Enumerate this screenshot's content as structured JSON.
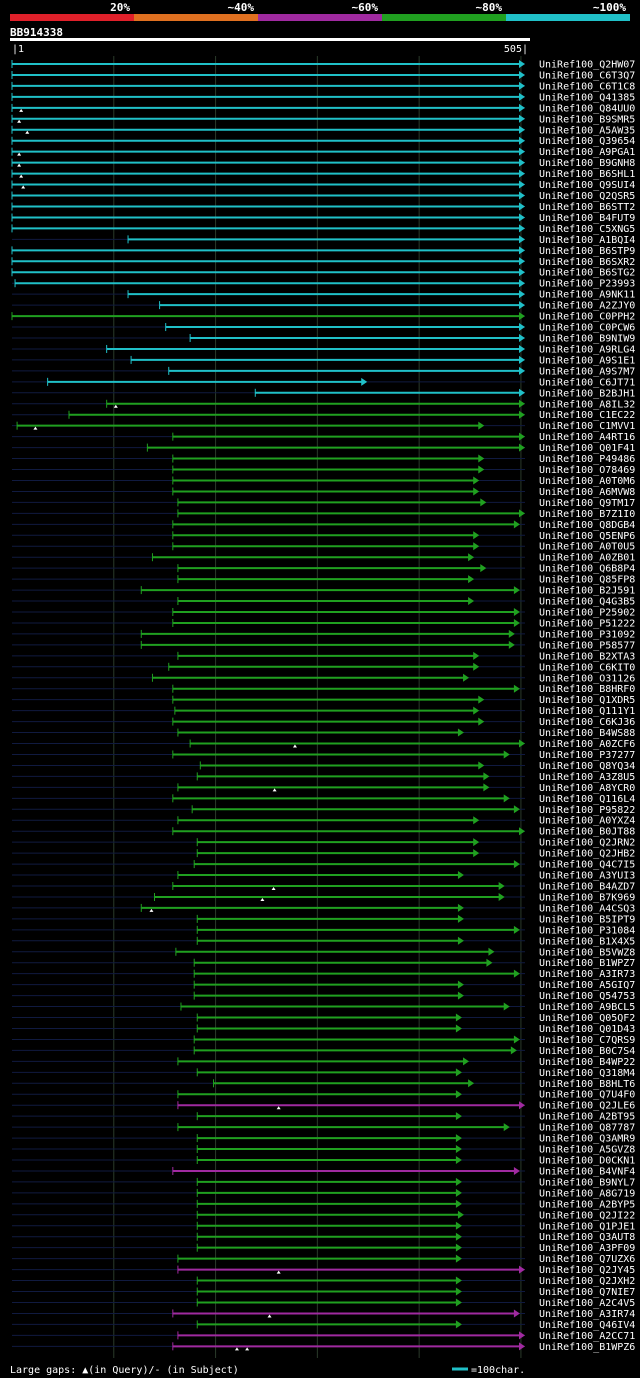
{
  "chart_data": {
    "type": "alignment-overview",
    "query": {
      "id": "BB914338",
      "start": 1,
      "end": 505
    },
    "legend": [
      {
        "label": "20%",
        "color": "#e0202a"
      },
      {
        "label": "~40%",
        "color": "#e07020"
      },
      {
        "label": "~60%",
        "color": "#a02aa0"
      },
      {
        "label": "~80%",
        "color": "#20a020"
      },
      {
        "label": "~100%",
        "color": "#20c0c8"
      }
    ],
    "scale_note": "=100char.",
    "footer": "Large gaps: ▲(in Query)/- (in Subject)",
    "hits": [
      {
        "id": "UniRef100_Q2HW07",
        "s": 1,
        "e": 505,
        "c": "t"
      },
      {
        "id": "UniRef100_C6T3Q7",
        "s": 1,
        "e": 505,
        "c": "t"
      },
      {
        "id": "UniRef100_C6T1C8",
        "s": 1,
        "e": 505,
        "c": "t"
      },
      {
        "id": "UniRef100_Q41385",
        "s": 1,
        "e": 505,
        "c": "t"
      },
      {
        "id": "UniRef100_Q84UU0",
        "s": 1,
        "e": 505,
        "c": "t",
        "q": [
          10
        ]
      },
      {
        "id": "UniRef100_B9SMR5",
        "s": 1,
        "e": 505,
        "c": "t",
        "q": [
          8
        ]
      },
      {
        "id": "UniRef100_A5AW35",
        "s": 1,
        "e": 505,
        "c": "t",
        "q": [
          16
        ]
      },
      {
        "id": "UniRef100_Q39654",
        "s": 1,
        "e": 505,
        "c": "t"
      },
      {
        "id": "UniRef100_A9PGA1",
        "s": 1,
        "e": 505,
        "c": "t",
        "q": [
          8
        ]
      },
      {
        "id": "UniRef100_B9GNH8",
        "s": 1,
        "e": 505,
        "c": "t",
        "q": [
          8
        ]
      },
      {
        "id": "UniRef100_B6SHL1",
        "s": 1,
        "e": 505,
        "c": "t",
        "q": [
          10
        ]
      },
      {
        "id": "UniRef100_Q9SUI4",
        "s": 1,
        "e": 505,
        "c": "t",
        "q": [
          12
        ]
      },
      {
        "id": "UniRef100_Q2QSR5",
        "s": 1,
        "e": 505,
        "c": "t"
      },
      {
        "id": "UniRef100_B6STT2",
        "s": 1,
        "e": 505,
        "c": "t"
      },
      {
        "id": "UniRef100_B4FUT9",
        "s": 1,
        "e": 505,
        "c": "t"
      },
      {
        "id": "UniRef100_C5XNG5",
        "s": 1,
        "e": 505,
        "c": "t"
      },
      {
        "id": "UniRef100_A1BQI4",
        "s": 115,
        "e": 505,
        "c": "t"
      },
      {
        "id": "UniRef100_B6STP9",
        "s": 1,
        "e": 505,
        "c": "t"
      },
      {
        "id": "UniRef100_B6SXR2",
        "s": 1,
        "e": 505,
        "c": "t"
      },
      {
        "id": "UniRef100_B6STG2",
        "s": 1,
        "e": 505,
        "c": "t"
      },
      {
        "id": "UniRef100_P23993",
        "s": 4,
        "e": 505,
        "c": "t"
      },
      {
        "id": "UniRef100_A9NK11",
        "s": 115,
        "e": 505,
        "c": "t"
      },
      {
        "id": "UniRef100_A2ZJY0",
        "s": 146,
        "e": 505,
        "c": "t"
      },
      {
        "id": "UniRef100_C0PPH2",
        "s": 1,
        "e": 505,
        "c": "g"
      },
      {
        "id": "UniRef100_C0PCW6",
        "s": 152,
        "e": 505,
        "c": "t"
      },
      {
        "id": "UniRef100_B9NIW9",
        "s": 176,
        "e": 505,
        "c": "t"
      },
      {
        "id": "UniRef100_A9RLG4",
        "s": 94,
        "e": 505,
        "c": "t"
      },
      {
        "id": "UniRef100_A9S1E1",
        "s": 118,
        "e": 505,
        "c": "t"
      },
      {
        "id": "UniRef100_A9S7M7",
        "s": 155,
        "e": 505,
        "c": "t"
      },
      {
        "id": "UniRef100_C6JT71",
        "s": 36,
        "e": 350,
        "c": "t"
      },
      {
        "id": "UniRef100_B2BJH1",
        "s": 240,
        "e": 505,
        "c": "t"
      },
      {
        "id": "UniRef100_A8IL32",
        "s": 94,
        "e": 505,
        "c": "g",
        "q": [
          103
        ]
      },
      {
        "id": "UniRef100_C1EC22",
        "s": 57,
        "e": 505,
        "c": "g"
      },
      {
        "id": "UniRef100_C1MVV1",
        "s": 6,
        "e": 465,
        "c": "g",
        "q": [
          24
        ]
      },
      {
        "id": "UniRef100_A4RT16",
        "s": 159,
        "e": 505,
        "c": "g"
      },
      {
        "id": "UniRef100_Q01F41",
        "s": 134,
        "e": 505,
        "c": "g"
      },
      {
        "id": "UniRef100_P49486",
        "s": 159,
        "e": 465,
        "c": "g"
      },
      {
        "id": "UniRef100_O78469",
        "s": 159,
        "e": 465,
        "c": "g"
      },
      {
        "id": "UniRef100_A0T0M6",
        "s": 159,
        "e": 460,
        "c": "g"
      },
      {
        "id": "UniRef100_A6MVW8",
        "s": 159,
        "e": 460,
        "c": "g"
      },
      {
        "id": "UniRef100_Q9TM17",
        "s": 164,
        "e": 467,
        "c": "g"
      },
      {
        "id": "UniRef100_B7Z1I0",
        "s": 164,
        "e": 505,
        "c": "g"
      },
      {
        "id": "UniRef100_Q8DGB4",
        "s": 159,
        "e": 500,
        "c": "g"
      },
      {
        "id": "UniRef100_Q5ENP6",
        "s": 159,
        "e": 460,
        "c": "g"
      },
      {
        "id": "UniRef100_A0T0U5",
        "s": 159,
        "e": 460,
        "c": "g"
      },
      {
        "id": "UniRef100_A0ZB01",
        "s": 139,
        "e": 455,
        "c": "g"
      },
      {
        "id": "UniRef100_Q6B8P4",
        "s": 164,
        "e": 467,
        "c": "g"
      },
      {
        "id": "UniRef100_Q85FP8",
        "s": 164,
        "e": 455,
        "c": "g"
      },
      {
        "id": "UniRef100_B2J591",
        "s": 128,
        "e": 500,
        "c": "g"
      },
      {
        "id": "UniRef100_Q4G3B5",
        "s": 164,
        "e": 455,
        "c": "g"
      },
      {
        "id": "UniRef100_P25902",
        "s": 159,
        "e": 500,
        "c": "g"
      },
      {
        "id": "UniRef100_P51222",
        "s": 159,
        "e": 500,
        "c": "g"
      },
      {
        "id": "UniRef100_P31092",
        "s": 128,
        "e": 495,
        "c": "g"
      },
      {
        "id": "UniRef100_P58577",
        "s": 128,
        "e": 495,
        "c": "g"
      },
      {
        "id": "UniRef100_B2XTA3",
        "s": 164,
        "e": 460,
        "c": "g"
      },
      {
        "id": "UniRef100_C6KIT0",
        "s": 155,
        "e": 460,
        "c": "g"
      },
      {
        "id": "UniRef100_O31126",
        "s": 139,
        "e": 450,
        "c": "g"
      },
      {
        "id": "UniRef100_B8HRF0",
        "s": 159,
        "e": 500,
        "c": "g"
      },
      {
        "id": "UniRef100_Q1XDR5",
        "s": 159,
        "e": 465,
        "c": "g"
      },
      {
        "id": "UniRef100_Q111Y1",
        "s": 161,
        "e": 460,
        "c": "g"
      },
      {
        "id": "UniRef100_C6KJ36",
        "s": 159,
        "e": 465,
        "c": "g"
      },
      {
        "id": "UniRef100_B4WS88",
        "s": 164,
        "e": 445,
        "c": "g"
      },
      {
        "id": "UniRef100_A0ZCF6",
        "s": 176,
        "e": 505,
        "c": "g",
        "q": [
          279
        ]
      },
      {
        "id": "UniRef100_P37277",
        "s": 159,
        "e": 490,
        "c": "g"
      },
      {
        "id": "UniRef100_Q8YQ34",
        "s": 186,
        "e": 465,
        "c": "g"
      },
      {
        "id": "UniRef100_A3Z8U5",
        "s": 183,
        "e": 470,
        "c": "g"
      },
      {
        "id": "UniRef100_A8YCR0",
        "s": 164,
        "e": 470,
        "c": "g",
        "q": [
          259
        ]
      },
      {
        "id": "UniRef100_Q116L4",
        "s": 159,
        "e": 490,
        "c": "g"
      },
      {
        "id": "UniRef100_P95822",
        "s": 178,
        "e": 500,
        "c": "g"
      },
      {
        "id": "UniRef100_A0YXZ4",
        "s": 164,
        "e": 460,
        "c": "g"
      },
      {
        "id": "UniRef100_B0JT88",
        "s": 159,
        "e": 505,
        "c": "g"
      },
      {
        "id": "UniRef100_Q2JRN2",
        "s": 183,
        "e": 460,
        "c": "g"
      },
      {
        "id": "UniRef100_Q2JHB2",
        "s": 183,
        "e": 460,
        "c": "g"
      },
      {
        "id": "UniRef100_Q4C7I5",
        "s": 180,
        "e": 500,
        "c": "g"
      },
      {
        "id": "UniRef100_A3YUI3",
        "s": 164,
        "e": 445,
        "c": "g"
      },
      {
        "id": "UniRef100_B4AZD7",
        "s": 159,
        "e": 485,
        "c": "g",
        "q": [
          258
        ]
      },
      {
        "id": "UniRef100_B7K969",
        "s": 141,
        "e": 485,
        "c": "g",
        "q": [
          247
        ]
      },
      {
        "id": "UniRef100_A4CSQ3",
        "s": 128,
        "e": 445,
        "c": "g",
        "q": [
          138
        ]
      },
      {
        "id": "UniRef100_B5IPT9",
        "s": 183,
        "e": 445,
        "c": "g"
      },
      {
        "id": "UniRef100_P31084",
        "s": 183,
        "e": 500,
        "c": "g"
      },
      {
        "id": "UniRef100_B1X4X5",
        "s": 183,
        "e": 445,
        "c": "g"
      },
      {
        "id": "UniRef100_B5VWZ8",
        "s": 162,
        "e": 475,
        "c": "g"
      },
      {
        "id": "UniRef100_B1WPZ7",
        "s": 180,
        "e": 473,
        "c": "g"
      },
      {
        "id": "UniRef100_A3IR73",
        "s": 180,
        "e": 500,
        "c": "g"
      },
      {
        "id": "UniRef100_A5GIQ7",
        "s": 180,
        "e": 445,
        "c": "g"
      },
      {
        "id": "UniRef100_Q54753",
        "s": 180,
        "e": 445,
        "c": "g"
      },
      {
        "id": "UniRef100_A9BCL5",
        "s": 167,
        "e": 490,
        "c": "g"
      },
      {
        "id": "UniRef100_Q05QF2",
        "s": 183,
        "e": 443,
        "c": "g"
      },
      {
        "id": "UniRef100_Q01D43",
        "s": 183,
        "e": 443,
        "c": "g"
      },
      {
        "id": "UniRef100_C7QRS9",
        "s": 180,
        "e": 500,
        "c": "g"
      },
      {
        "id": "UniRef100_B0C7S4",
        "s": 180,
        "e": 497,
        "c": "g"
      },
      {
        "id": "UniRef100_B4WP22",
        "s": 164,
        "e": 450,
        "c": "g"
      },
      {
        "id": "UniRef100_Q318M4",
        "s": 183,
        "e": 443,
        "c": "g"
      },
      {
        "id": "UniRef100_B8HLT6",
        "s": 199,
        "e": 455,
        "c": "g"
      },
      {
        "id": "UniRef100_Q7U4F0",
        "s": 164,
        "e": 443,
        "c": "g"
      },
      {
        "id": "UniRef100_Q2JLE6",
        "s": 164,
        "e": 505,
        "c": "p",
        "q": [
          263
        ]
      },
      {
        "id": "UniRef100_A2BT95",
        "s": 183,
        "e": 443,
        "c": "g"
      },
      {
        "id": "UniRef100_Q87787",
        "s": 164,
        "e": 490,
        "c": "g"
      },
      {
        "id": "UniRef100_Q3AMR9",
        "s": 183,
        "e": 443,
        "c": "g"
      },
      {
        "id": "UniRef100_A5GVZ8",
        "s": 183,
        "e": 443,
        "c": "g"
      },
      {
        "id": "UniRef100_D0CKN1",
        "s": 183,
        "e": 443,
        "c": "g"
      },
      {
        "id": "UniRef100_B4VNF4",
        "s": 159,
        "e": 500,
        "c": "p"
      },
      {
        "id": "UniRef100_B9NYL7",
        "s": 183,
        "e": 443,
        "c": "g"
      },
      {
        "id": "UniRef100_A8G719",
        "s": 183,
        "e": 443,
        "c": "g"
      },
      {
        "id": "UniRef100_A2BYP5",
        "s": 183,
        "e": 443,
        "c": "g"
      },
      {
        "id": "UniRef100_Q2JI22",
        "s": 183,
        "e": 445,
        "c": "g"
      },
      {
        "id": "UniRef100_Q1PJE1",
        "s": 183,
        "e": 443,
        "c": "g"
      },
      {
        "id": "UniRef100_Q3AUT8",
        "s": 183,
        "e": 443,
        "c": "g"
      },
      {
        "id": "UniRef100_A3PF09",
        "s": 183,
        "e": 443,
        "c": "g"
      },
      {
        "id": "UniRef100_Q7UZX6",
        "s": 164,
        "e": 443,
        "c": "g"
      },
      {
        "id": "UniRef100_Q2JY45",
        "s": 164,
        "e": 505,
        "c": "p",
        "q": [
          263
        ]
      },
      {
        "id": "UniRef100_Q2JXH2",
        "s": 183,
        "e": 443,
        "c": "g"
      },
      {
        "id": "UniRef100_Q7NIE7",
        "s": 183,
        "e": 443,
        "c": "g"
      },
      {
        "id": "UniRef100_A2C4V5",
        "s": 183,
        "e": 443,
        "c": "g"
      },
      {
        "id": "UniRef100_A3IR74",
        "s": 159,
        "e": 500,
        "c": "p",
        "q": [
          254
        ]
      },
      {
        "id": "UniRef100_Q46IV4",
        "s": 183,
        "e": 443,
        "c": "g"
      },
      {
        "id": "UniRef100_A2CC71",
        "s": 164,
        "e": 505,
        "c": "p"
      },
      {
        "id": "UniRef100_B1WPZ6",
        "s": 159,
        "e": 505,
        "c": "p",
        "q": [
          222,
          232
        ]
      }
    ]
  }
}
